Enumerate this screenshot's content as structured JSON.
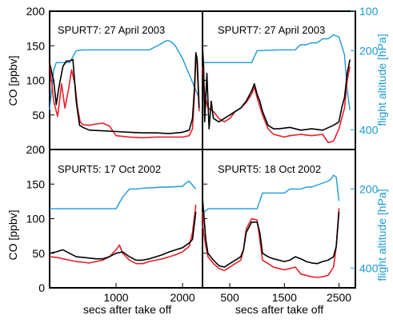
{
  "colors": {
    "model": "#e8202a",
    "observed": "#000000",
    "altitude": "#1a9ad6",
    "frame": "#000000"
  },
  "labels": {
    "co_axis": "CO [ppbv]",
    "altitude_axis": "flight altitude [hPa]",
    "x_axis": "secs after take off"
  },
  "chart_data": [
    {
      "type": "line",
      "title": "SPURT7: 27 April 2003",
      "ylabel": "CO [ppbv]",
      "ylim": [
        0,
        200
      ],
      "yticks": [
        "0",
        "50",
        "100",
        "150",
        "200"
      ],
      "y2label": "flight altitude [hPa]",
      "y2lim": [
        100,
        450
      ],
      "y2ticks": [
        "100",
        "200",
        "400"
      ],
      "xlim": [
        0,
        2300
      ],
      "xticks": [],
      "grid": false,
      "series": [
        {
          "name": "observed",
          "color": "#000000",
          "x": [
            0,
            60,
            100,
            140,
            200,
            250,
            300,
            350,
            400,
            450,
            500,
            600,
            800,
            1000,
            1200,
            1400,
            1600,
            1800,
            2000,
            2100,
            2150,
            2180,
            2200,
            2220,
            2250
          ],
          "y": [
            125,
            100,
            65,
            90,
            120,
            128,
            128,
            130,
            70,
            35,
            32,
            28,
            27,
            26,
            25,
            24,
            24,
            23,
            25,
            28,
            45,
            90,
            140,
            130,
            60
          ]
        },
        {
          "name": "model",
          "color": "#e8202a",
          "x": [
            0,
            60,
            120,
            180,
            230,
            280,
            330,
            380,
            420,
            460,
            500,
            600,
            700,
            800,
            900,
            1000,
            1200,
            1400,
            1600,
            1800,
            2000,
            2100,
            2150,
            2180,
            2200,
            2220,
            2250
          ],
          "y": [
            125,
            70,
            48,
            95,
            60,
            85,
            115,
            95,
            60,
            40,
            36,
            35,
            37,
            38,
            34,
            20,
            18,
            17,
            18,
            18,
            18,
            20,
            30,
            80,
            135,
            120,
            55
          ]
        },
        {
          "name": "altitude",
          "color": "#1a9ad6",
          "axis": "y2",
          "x": [
            0,
            60,
            100,
            140,
            250,
            300,
            400,
            500,
            1000,
            1500,
            1650,
            1700,
            1750,
            1800,
            1850,
            1900,
            2000,
            2100,
            2200,
            2250
          ],
          "y": [
            350,
            250,
            230,
            230,
            230,
            230,
            200,
            198,
            198,
            198,
            185,
            180,
            175,
            175,
            180,
            190,
            220,
            260,
            300,
            320
          ]
        }
      ]
    },
    {
      "type": "line",
      "title": "SPURT7: 27 April 2003",
      "ylim": [
        0,
        200
      ],
      "y2label": "flight altitude [hPa]",
      "y2lim": [
        100,
        450
      ],
      "y2ticks": [
        "100",
        "200",
        "400"
      ],
      "xlim": [
        0,
        2800
      ],
      "xticks": [],
      "grid": false,
      "series": [
        {
          "name": "observed",
          "color": "#000000",
          "x": [
            0,
            20,
            40,
            80,
            120,
            160,
            200,
            300,
            400,
            500,
            600,
            700,
            800,
            900,
            950,
            1000,
            1050,
            1100,
            1200,
            1300,
            1400,
            1600,
            1800,
            2000,
            2200,
            2400,
            2500,
            2550,
            2600,
            2650,
            2700
          ],
          "y": [
            150,
            120,
            40,
            110,
            30,
            70,
            45,
            40,
            45,
            50,
            55,
            60,
            70,
            85,
            95,
            80,
            70,
            55,
            35,
            30,
            30,
            32,
            28,
            30,
            28,
            35,
            40,
            60,
            75,
            110,
            130
          ]
        },
        {
          "name": "model",
          "color": "#e8202a",
          "x": [
            0,
            40,
            100,
            200,
            300,
            400,
            500,
            600,
            700,
            800,
            900,
            950,
            1000,
            1100,
            1200,
            1300,
            1400,
            1500,
            1600,
            1800,
            2000,
            2200,
            2300,
            2400,
            2500,
            2600,
            2650,
            2700
          ],
          "y": [
            120,
            80,
            60,
            55,
            45,
            40,
            45,
            55,
            60,
            68,
            80,
            90,
            75,
            50,
            30,
            22,
            20,
            18,
            20,
            22,
            20,
            22,
            10,
            12,
            30,
            60,
            100,
            120
          ]
        },
        {
          "name": "altitude",
          "color": "#1a9ad6",
          "axis": "y2",
          "x": [
            0,
            100,
            200,
            600,
            900,
            1000,
            1400,
            1700,
            1750,
            1800,
            1900,
            2000,
            2100,
            2200,
            2300,
            2400,
            2500,
            2600,
            2650,
            2700
          ],
          "y": [
            230,
            230,
            230,
            230,
            230,
            200,
            198,
            198,
            190,
            185,
            185,
            180,
            180,
            170,
            170,
            160,
            165,
            210,
            300,
            350
          ]
        }
      ]
    },
    {
      "type": "line",
      "title": "SPURT5: 17 Oct 2002",
      "ylabel": "CO [ppbv]",
      "ylim": [
        0,
        200
      ],
      "yticks": [
        "0",
        "50",
        "100",
        "150",
        "200"
      ],
      "xlabel": "secs after take off",
      "xlim": [
        0,
        2300
      ],
      "xticks": [
        "1000",
        "2000"
      ],
      "grid": false,
      "series": [
        {
          "name": "observed",
          "color": "#000000",
          "x": [
            0,
            100,
            200,
            300,
            400,
            500,
            600,
            700,
            800,
            900,
            1000,
            1100,
            1200,
            1300,
            1400,
            1500,
            1600,
            1700,
            1800,
            1900,
            2000,
            2100,
            2150,
            2200
          ],
          "y": [
            50,
            52,
            55,
            50,
            45,
            44,
            43,
            42,
            42,
            45,
            50,
            52,
            45,
            40,
            40,
            42,
            45,
            48,
            52,
            55,
            58,
            65,
            70,
            110
          ]
        },
        {
          "name": "model",
          "color": "#e8202a",
          "x": [
            0,
            100,
            200,
            300,
            400,
            500,
            600,
            700,
            800,
            900,
            1000,
            1050,
            1100,
            1200,
            1300,
            1400,
            1500,
            1600,
            1700,
            1800,
            1900,
            2000,
            2100,
            2150,
            2200
          ],
          "y": [
            45,
            44,
            42,
            40,
            38,
            37,
            36,
            38,
            40,
            45,
            55,
            62,
            50,
            40,
            35,
            35,
            38,
            40,
            42,
            45,
            48,
            52,
            60,
            80,
            120
          ]
        },
        {
          "name": "altitude",
          "color": "#1a9ad6",
          "axis": "y2",
          "x": [
            0,
            500,
            1000,
            1100,
            1200,
            1300,
            1400,
            1500,
            1600,
            1700,
            1800,
            1900,
            2000,
            2050,
            2100,
            2150,
            2200
          ],
          "y": [
            250,
            250,
            250,
            220,
            200,
            200,
            198,
            197,
            196,
            195,
            195,
            194,
            193,
            185,
            180,
            190,
            200
          ]
        }
      ]
    },
    {
      "type": "line",
      "title": "SPURT5: 18 Oct 2002",
      "ylim": [
        0,
        200
      ],
      "y2label": "flight altitude [hPa]",
      "y2lim": [
        100,
        450
      ],
      "y2ticks": [
        "200",
        "400"
      ],
      "xlabel": "secs after take off",
      "xlim": [
        0,
        2800
      ],
      "xticks": [
        "500",
        "1500",
        "2500"
      ],
      "grid": false,
      "series": [
        {
          "name": "observed",
          "color": "#000000",
          "x": [
            0,
            20,
            60,
            100,
            200,
            300,
            400,
            500,
            600,
            700,
            750,
            800,
            900,
            1000,
            1050,
            1100,
            1200,
            1300,
            1400,
            1500,
            1600,
            1700,
            1800,
            1900,
            2000,
            2100,
            2200,
            2300,
            2400,
            2450,
            2500
          ],
          "y": [
            130,
            110,
            70,
            50,
            40,
            32,
            30,
            35,
            40,
            45,
            55,
            80,
            95,
            95,
            80,
            50,
            45,
            42,
            40,
            38,
            40,
            45,
            42,
            38,
            36,
            35,
            38,
            40,
            45,
            60,
            110
          ]
        },
        {
          "name": "model",
          "color": "#e8202a",
          "x": [
            0,
            20,
            60,
            100,
            200,
            300,
            400,
            500,
            600,
            700,
            750,
            800,
            900,
            1000,
            1050,
            1100,
            1200,
            1300,
            1400,
            1500,
            1600,
            1700,
            1800,
            1900,
            2000,
            2100,
            2200,
            2300,
            2400,
            2450,
            2500
          ],
          "y": [
            110,
            80,
            60,
            45,
            35,
            28,
            25,
            30,
            35,
            40,
            55,
            85,
            100,
            98,
            70,
            40,
            35,
            30,
            28,
            26,
            28,
            30,
            20,
            18,
            16,
            15,
            16,
            18,
            30,
            60,
            115
          ]
        },
        {
          "name": "altitude",
          "color": "#1a9ad6",
          "axis": "y2",
          "x": [
            0,
            20,
            100,
            500,
            800,
            1000,
            1100,
            1400,
            1500,
            1550,
            1600,
            1800,
            1900,
            2000,
            2100,
            2200,
            2300,
            2350,
            2400,
            2450,
            2500
          ],
          "y": [
            300,
            260,
            250,
            250,
            250,
            250,
            210,
            210,
            210,
            205,
            200,
            200,
            195,
            195,
            190,
            185,
            180,
            175,
            165,
            170,
            230
          ]
        }
      ]
    }
  ]
}
